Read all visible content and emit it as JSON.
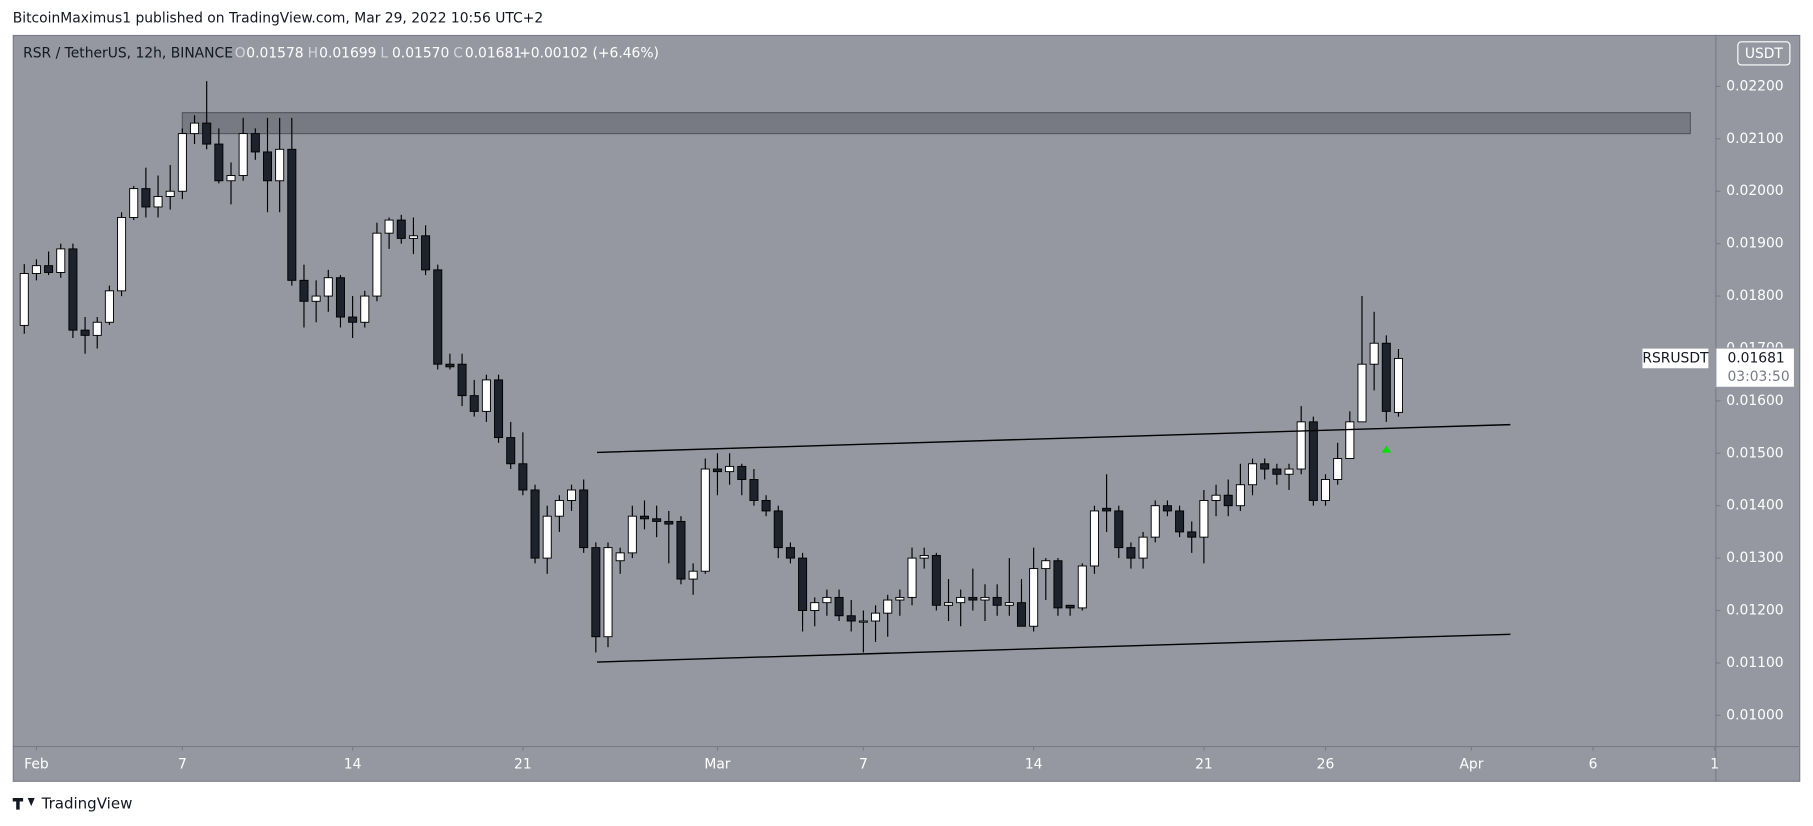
{
  "header": {
    "published": "BitcoinMaximus1 published on TradingView.com, Mar 29, 2022 10:56 UTC+2",
    "footer": "TradingView"
  },
  "chart_data": {
    "type": "candlestick",
    "title": "RSR / TetherUS, 12h, BINANCE",
    "ohlc_legend": [
      {
        "label": "O",
        "value": "0.01578"
      },
      {
        "label": "H",
        "value": "0.01699"
      },
      {
        "label": "L",
        "value": "0.01570"
      },
      {
        "label": "C",
        "value": "0.01681"
      }
    ],
    "change": "+0.00102 (+6.46%)",
    "currency": "USDT",
    "symbol": "RSRUSDT",
    "countdown": "03:03:50",
    "up_color": "#ffffff",
    "down_color": "#1e222d",
    "wick_color": "#000000",
    "background": "#9598a1",
    "open": [
      0.01744,
      0.01843,
      0.01858,
      0.01845,
      0.0189,
      0.01735,
      0.01725,
      0.0175,
      0.0181,
      0.0195,
      0.02005,
      0.0197,
      0.0199,
      0.02,
      0.0211,
      0.0213,
      0.0209,
      0.0202,
      0.0203,
      0.0211,
      0.02075,
      0.0202,
      0.0208,
      0.0183,
      0.0179,
      0.018,
      0.01835,
      0.0176,
      0.0175,
      0.018,
      0.0192,
      0.01945,
      0.0191,
      0.01915,
      0.0185,
      0.0167,
      0.0167,
      0.0161,
      0.0158,
      0.0164,
      0.0153,
      0.0148,
      0.0143,
      0.013,
      0.0138,
      0.0141,
      0.0143,
      0.0132,
      0.0115,
      0.01295,
      0.0131,
      0.0138,
      0.01375,
      0.0137,
      0.0137,
      0.0126,
      0.01275,
      0.0147,
      0.01465,
      0.01475,
      0.0145,
      0.0141,
      0.0139,
      0.0132,
      0.013,
      0.012,
      0.01215,
      0.01225,
      0.0119,
      0.0118,
      0.0118,
      0.01195,
      0.0122,
      0.01225,
      0.013,
      0.01305,
      0.0121,
      0.01215,
      0.01225,
      0.0122,
      0.01225,
      0.0121,
      0.01215,
      0.0117,
      0.0128,
      0.01295,
      0.0121,
      0.01205,
      0.01285,
      0.01395,
      0.0139,
      0.0132,
      0.013,
      0.0134,
      0.014,
      0.0139,
      0.0135,
      0.0134,
      0.0141,
      0.0142,
      0.014,
      0.0144,
      0.0148,
      0.0147,
      0.0146,
      0.0147,
      0.0156,
      0.0141,
      0.0145,
      0.0149,
      0.0156,
      0.0167,
      0.0171,
      0.01578
    ],
    "high": [
      0.01861,
      0.0187,
      0.01885,
      0.019,
      0.019,
      0.0176,
      0.0176,
      0.0182,
      0.0196,
      0.0201,
      0.02045,
      0.0203,
      0.0205,
      0.0212,
      0.02145,
      0.0221,
      0.0212,
      0.02055,
      0.0214,
      0.0212,
      0.0214,
      0.0214,
      0.0214,
      0.0186,
      0.0183,
      0.0185,
      0.0184,
      0.018,
      0.0181,
      0.0194,
      0.0195,
      0.01955,
      0.0195,
      0.01935,
      0.0186,
      0.0169,
      0.0169,
      0.0164,
      0.0165,
      0.0165,
      0.0156,
      0.0154,
      0.0144,
      0.014,
      0.0142,
      0.0144,
      0.0145,
      0.0133,
      0.0133,
      0.0132,
      0.014,
      0.0141,
      0.014,
      0.0139,
      0.0138,
      0.0129,
      0.0149,
      0.015,
      0.015,
      0.0148,
      0.0147,
      0.0142,
      0.014,
      0.0133,
      0.0131,
      0.01225,
      0.0124,
      0.0124,
      0.0122,
      0.012,
      0.0121,
      0.0123,
      0.0124,
      0.0132,
      0.0132,
      0.0131,
      0.0126,
      0.0124,
      0.0128,
      0.0125,
      0.0125,
      0.013,
      0.0126,
      0.0132,
      0.013,
      0.013,
      0.0121,
      0.0129,
      0.014,
      0.0146,
      0.014,
      0.0133,
      0.0135,
      0.0141,
      0.0141,
      0.014,
      0.0137,
      0.0143,
      0.0144,
      0.0145,
      0.0148,
      0.0149,
      0.0149,
      0.0148,
      0.0148,
      0.0159,
      0.0157,
      0.0146,
      0.0152,
      0.0158,
      0.018,
      0.0177,
      0.01725,
      0.01699
    ],
    "low": [
      0.01728,
      0.0183,
      0.0184,
      0.01835,
      0.0172,
      0.0169,
      0.017,
      0.01745,
      0.018,
      0.01945,
      0.0195,
      0.0195,
      0.01965,
      0.01985,
      0.0209,
      0.0208,
      0.02015,
      0.01975,
      0.0202,
      0.0206,
      0.0196,
      0.0196,
      0.0182,
      0.0174,
      0.0175,
      0.0177,
      0.0174,
      0.0172,
      0.0174,
      0.0179,
      0.0189,
      0.019,
      0.0188,
      0.0184,
      0.0166,
      0.0166,
      0.0159,
      0.0157,
      0.0156,
      0.0152,
      0.0147,
      0.0142,
      0.0129,
      0.0127,
      0.0135,
      0.0139,
      0.0131,
      0.0112,
      0.0113,
      0.0127,
      0.013,
      0.01355,
      0.0134,
      0.0129,
      0.0125,
      0.0123,
      0.0127,
      0.0142,
      0.0144,
      0.0142,
      0.014,
      0.0138,
      0.013,
      0.0129,
      0.0116,
      0.0117,
      0.0119,
      0.0118,
      0.0116,
      0.0112,
      0.0114,
      0.0115,
      0.0119,
      0.0121,
      0.0128,
      0.012,
      0.0118,
      0.0117,
      0.012,
      0.0118,
      0.0119,
      0.0119,
      0.0117,
      0.0116,
      0.0122,
      0.0119,
      0.0119,
      0.012,
      0.0127,
      0.0135,
      0.013,
      0.0128,
      0.0128,
      0.0133,
      0.0138,
      0.0134,
      0.0131,
      0.0129,
      0.0138,
      0.0138,
      0.0139,
      0.0142,
      0.0145,
      0.0144,
      0.0143,
      0.0146,
      0.014,
      0.014,
      0.0144,
      0.0149,
      0.0156,
      0.0162,
      0.0156,
      0.0157
    ],
    "close": [
      0.01843,
      0.01858,
      0.01845,
      0.0189,
      0.01735,
      0.01725,
      0.0175,
      0.0181,
      0.0195,
      0.02005,
      0.0197,
      0.0199,
      0.02,
      0.0211,
      0.0213,
      0.0209,
      0.0202,
      0.0203,
      0.0211,
      0.02075,
      0.0202,
      0.0208,
      0.0183,
      0.0179,
      0.018,
      0.01835,
      0.0176,
      0.0175,
      0.018,
      0.0192,
      0.01945,
      0.0191,
      0.01915,
      0.0185,
      0.0167,
      0.01665,
      0.0161,
      0.0158,
      0.0164,
      0.0153,
      0.0148,
      0.0143,
      0.013,
      0.0138,
      0.0141,
      0.0143,
      0.0132,
      0.0115,
      0.0132,
      0.0131,
      0.0138,
      0.01375,
      0.0137,
      0.01365,
      0.0126,
      0.01275,
      0.0147,
      0.01465,
      0.01475,
      0.0145,
      0.0141,
      0.0139,
      0.0132,
      0.013,
      0.012,
      0.01215,
      0.01225,
      0.0119,
      0.0118,
      0.0118,
      0.01195,
      0.0122,
      0.01225,
      0.013,
      0.01305,
      0.0121,
      0.01215,
      0.01225,
      0.0122,
      0.01225,
      0.0121,
      0.01215,
      0.0117,
      0.0128,
      0.01295,
      0.01205,
      0.01205,
      0.01285,
      0.0139,
      0.0139,
      0.0132,
      0.013,
      0.0134,
      0.014,
      0.0139,
      0.0135,
      0.0134,
      0.0141,
      0.0142,
      0.014,
      0.0144,
      0.0148,
      0.0147,
      0.0146,
      0.0147,
      0.0156,
      0.0141,
      0.0145,
      0.0149,
      0.0156,
      0.0167,
      0.0171,
      0.0158,
      0.01681
    ],
    "xlim": [
      -0.95,
      139.1
    ],
    "xticks": [
      {
        "value": 1,
        "label": "Feb"
      },
      {
        "value": 13,
        "label": "7"
      },
      {
        "value": 27,
        "label": "14"
      },
      {
        "value": 41,
        "label": "21"
      },
      {
        "value": 57,
        "label": "Mar"
      },
      {
        "value": 69,
        "label": "7"
      },
      {
        "value": 83,
        "label": "14"
      },
      {
        "value": 97,
        "label": "21"
      },
      {
        "value": 107,
        "label": "26"
      },
      {
        "value": 119,
        "label": "Apr"
      },
      {
        "value": 129,
        "label": "6"
      },
      {
        "value": 139,
        "label": "1"
      }
    ],
    "ylim": [
      0.009415,
      0.022983
    ],
    "yticks": [
      {
        "value": 0.022,
        "label": "0.02200"
      },
      {
        "value": 0.021,
        "label": "0.02100"
      },
      {
        "value": 0.02,
        "label": "0.02000"
      },
      {
        "value": 0.019,
        "label": "0.01900"
      },
      {
        "value": 0.018,
        "label": "0.01800"
      },
      {
        "value": 0.017,
        "label": "0.01700"
      },
      {
        "value": 0.016,
        "label": "0.01600"
      },
      {
        "value": 0.015,
        "label": "0.01500"
      },
      {
        "value": 0.014,
        "label": "0.01400"
      },
      {
        "value": 0.013,
        "label": "0.01300"
      },
      {
        "value": 0.012,
        "label": "0.01200"
      },
      {
        "value": 0.011,
        "label": "0.01100"
      },
      {
        "value": 0.01,
        "label": "0.01000"
      }
    ],
    "zone": {
      "x": [
        13,
        137
      ],
      "y": [
        0.0211,
        0.0215
      ],
      "color": "#6f727c"
    },
    "trendlines": [
      {
        "x": [
          47.1,
          122.2
        ],
        "y": [
          0.015017,
          0.015547
        ]
      },
      {
        "x": [
          47.1,
          122.2
        ],
        "y": [
          0.011017,
          0.011547
        ]
      }
    ],
    "marker": {
      "x": 112,
      "y": 0.01508,
      "color": "#00e000"
    }
  }
}
